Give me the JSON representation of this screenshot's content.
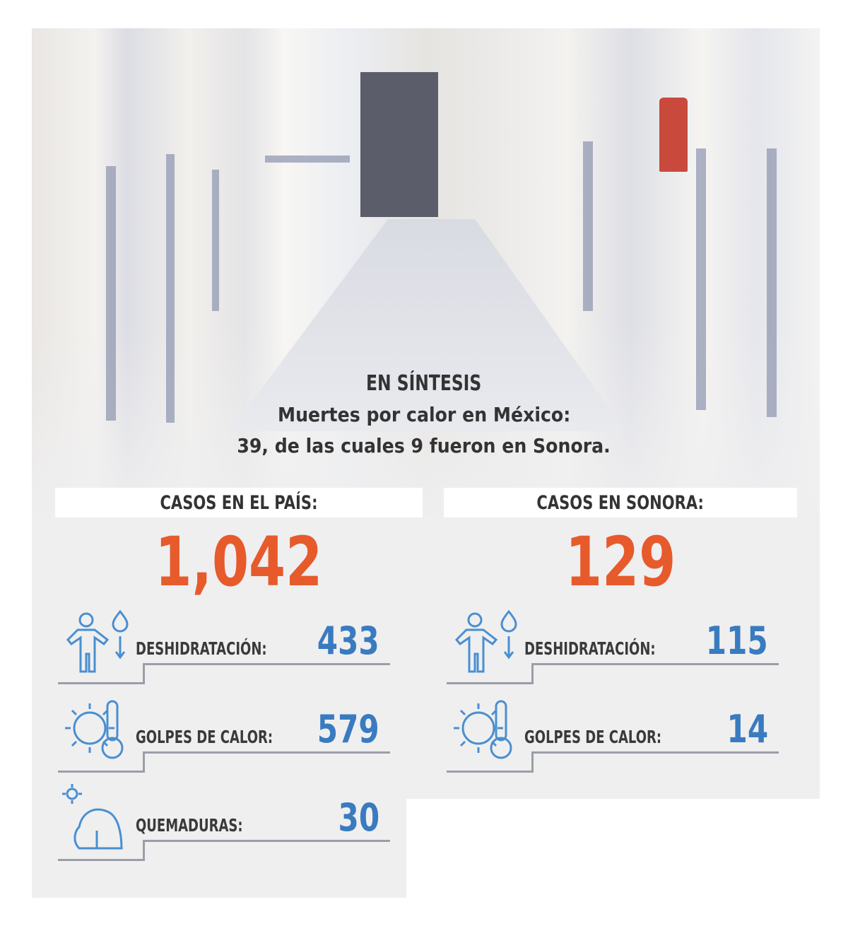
{
  "header": {
    "title": "EN SÍNTESIS",
    "line1": "Muertes por calor en México:",
    "line2": "39, de las cuales 9 fueron en Sonora."
  },
  "colors": {
    "total": "#e75a2b",
    "value": "#3a7bc0",
    "icon": "#4a8fd0"
  },
  "pais": {
    "heading": "CASOS EN EL PAÍS:",
    "total": "1,042",
    "rows": [
      {
        "icon": "dehydration-icon",
        "label": "DESHIDRATACIÓN:",
        "value": "433"
      },
      {
        "icon": "heat-stroke-icon",
        "label": "GOLPES DE CALOR:",
        "value": "579"
      },
      {
        "icon": "sunburn-icon",
        "label": "QUEMADURAS:",
        "value": "30"
      }
    ]
  },
  "sonora": {
    "heading": "CASOS EN SONORA:",
    "total": "129",
    "rows": [
      {
        "icon": "dehydration-icon",
        "label": "DESHIDRATACIÓN:",
        "value": "115"
      },
      {
        "icon": "heat-stroke-icon",
        "label": "GOLPES DE CALOR:",
        "value": "14"
      }
    ]
  }
}
